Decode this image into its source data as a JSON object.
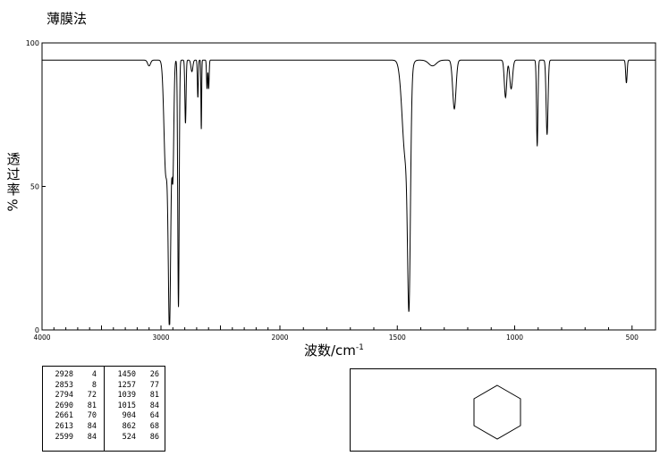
{
  "method_label": "薄膜法",
  "chart_data": {
    "type": "line",
    "xlabel_main": "波数/cm",
    "xlabel_sup": "-1",
    "ylabel_chars": [
      "透",
      "过",
      "率"
    ],
    "ylabel_unit": "%",
    "x_reversed": true,
    "xlim": [
      4000,
      400
    ],
    "ylim": [
      0,
      100
    ],
    "x_ticks": [
      4000,
      3000,
      2000,
      1500,
      1000,
      500
    ],
    "y_ticks": [
      0,
      50,
      100
    ],
    "grid": false,
    "baseline": 94,
    "peaks": [
      {
        "x": 3100,
        "y": 92,
        "w": 12
      },
      {
        "x": 2960,
        "y": 55,
        "w": 15
      },
      {
        "x": 2928,
        "y": 4,
        "w": 11
      },
      {
        "x": 2900,
        "y": 55,
        "w": 8
      },
      {
        "x": 2853,
        "y": 8,
        "w": 6
      },
      {
        "x": 2794,
        "y": 72,
        "w": 5
      },
      {
        "x": 2740,
        "y": 90,
        "w": 8
      },
      {
        "x": 2690,
        "y": 81,
        "w": 4
      },
      {
        "x": 2661,
        "y": 70,
        "w": 3
      },
      {
        "x": 2613,
        "y": 84,
        "w": 4
      },
      {
        "x": 2599,
        "y": 84,
        "w": 4
      },
      {
        "x": 1465,
        "y": 60,
        "w": 14
      },
      {
        "x": 1450,
        "y": 26,
        "w": 6
      },
      {
        "x": 1350,
        "y": 92,
        "w": 16
      },
      {
        "x": 1257,
        "y": 77,
        "w": 7
      },
      {
        "x": 1039,
        "y": 81,
        "w": 5
      },
      {
        "x": 1015,
        "y": 84,
        "w": 6
      },
      {
        "x": 904,
        "y": 64,
        "w": 3
      },
      {
        "x": 862,
        "y": 68,
        "w": 4
      },
      {
        "x": 524,
        "y": 86,
        "w": 3
      }
    ],
    "peak_table": {
      "col1": [
        [
          "2928",
          "4"
        ],
        [
          "2853",
          "8"
        ],
        [
          "2794",
          "72"
        ],
        [
          "2690",
          "81"
        ],
        [
          "2661",
          "70"
        ],
        [
          "2613",
          "84"
        ],
        [
          "2599",
          "84"
        ]
      ],
      "col2": [
        [
          "1450",
          "26"
        ],
        [
          "1257",
          "77"
        ],
        [
          "1039",
          "81"
        ],
        [
          "1015",
          "84"
        ],
        [
          "904",
          "64"
        ],
        [
          "862",
          "68"
        ],
        [
          "524",
          "86"
        ]
      ]
    }
  }
}
